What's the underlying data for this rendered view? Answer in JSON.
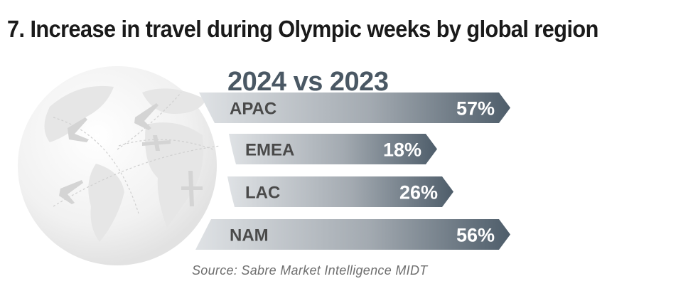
{
  "chart_data": {
    "type": "bar",
    "orientation": "horizontal",
    "title": "7. Increase in travel during Olympic weeks by global region",
    "subtitle": "2024 vs 2023",
    "categories": [
      "APAC",
      "EMEA",
      "LAC",
      "NAM"
    ],
    "values": [
      57,
      18,
      26,
      56
    ],
    "value_labels": [
      "57%",
      "18%",
      "26%",
      "56%"
    ],
    "unit": "%",
    "xlabel": "",
    "ylabel": "",
    "grid": false,
    "legend": "none",
    "source": "Source: Sabre Market Intelligence MIDT"
  },
  "colors": {
    "bar_start": "#dfe2e5",
    "bar_end": "#4e5d6a",
    "label_text": "#4a4a4a",
    "value_text": "#ffffff",
    "subtitle_text": "#4a5864",
    "globe": "#e9e9e9"
  },
  "decor": {
    "background_image": "globe-with-airplanes"
  }
}
